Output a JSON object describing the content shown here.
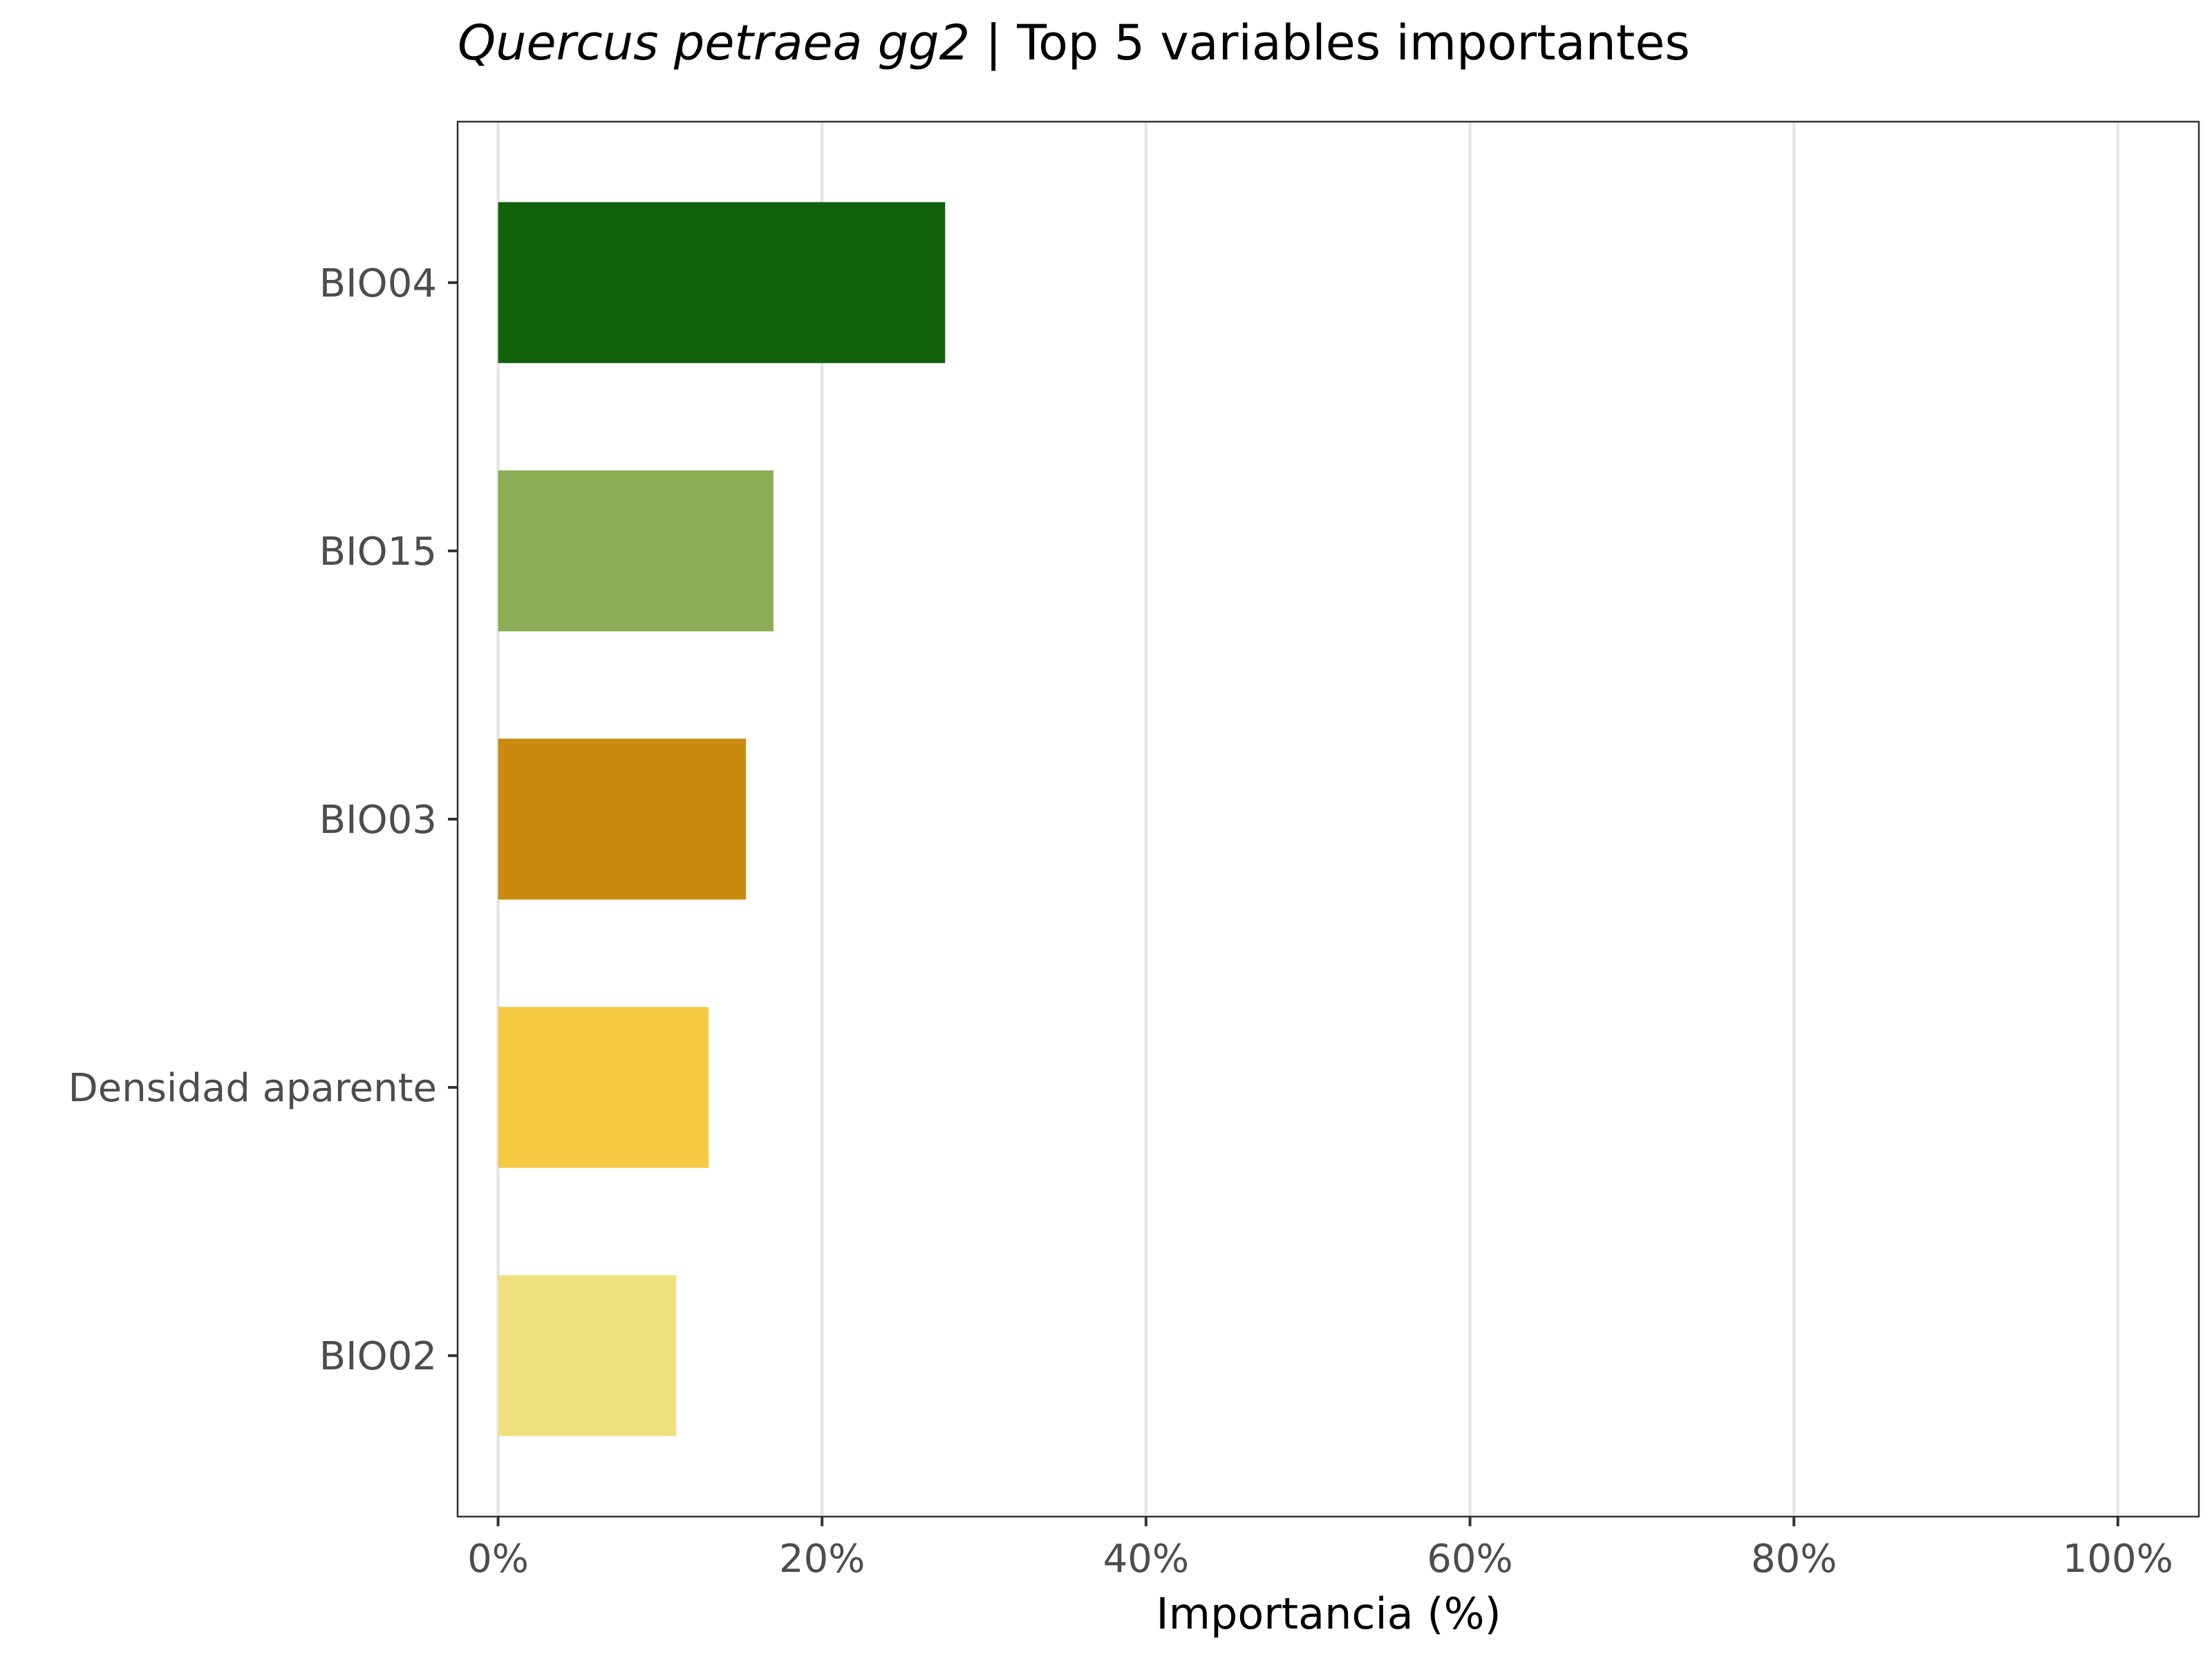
{
  "chart_data": {
    "type": "bar",
    "orientation": "horizontal",
    "title_italic": "Quercus petraea gg2",
    "title_rest": " | Top 5 variables importantes",
    "xlabel": "Importancia (%)",
    "ylabel": "",
    "xlim": [
      -2.5,
      105
    ],
    "x_ticks": [
      0,
      20,
      40,
      60,
      80,
      100
    ],
    "x_tick_labels": [
      "0%",
      "20%",
      "40%",
      "60%",
      "80%",
      "100%"
    ],
    "grid": "vertical major gridlines",
    "legend": "none",
    "categories": [
      "BIO04",
      "BIO15",
      "BIO03",
      "Densidad aparente",
      "BIO02"
    ],
    "values": [
      27.6,
      17.0,
      15.3,
      13.0,
      11.0
    ],
    "colors": [
      "#11610d",
      "#8aad55",
      "#c98b0f",
      "#f5c942",
      "#ede27d"
    ]
  }
}
